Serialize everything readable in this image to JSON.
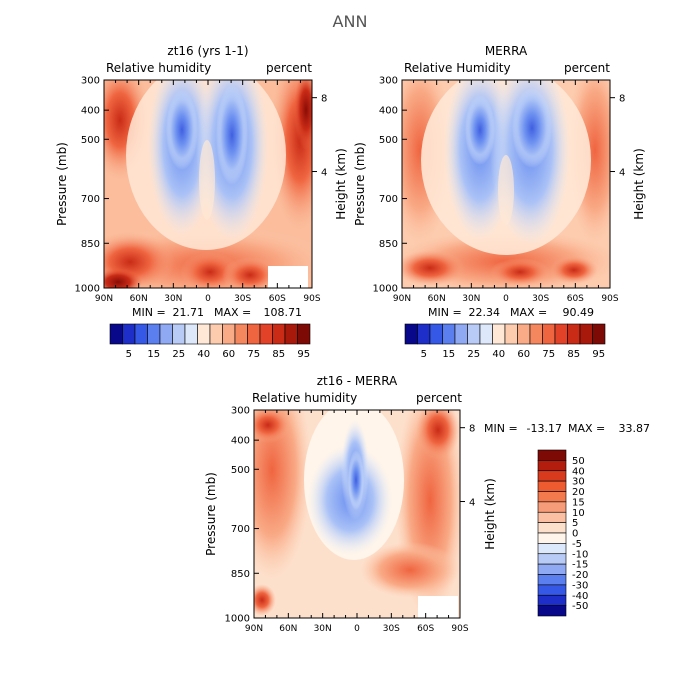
{
  "figure": {
    "title": "ANN"
  },
  "colors": {
    "axis": "#000000",
    "blank_region": "#ffffff"
  },
  "chart_data": [
    {
      "type": "heatmap",
      "id": "model",
      "title": "zt16 (yrs 1-1)",
      "left_label": "Relative humidity",
      "right_label": "percent",
      "xlabel": "",
      "ylabel": "Pressure (mb)",
      "ylabel_right": "Height (km)",
      "x_ticks": [
        "90N",
        "60N",
        "30N",
        "0",
        "30S",
        "60S",
        "90S"
      ],
      "y_ticks": [
        "300",
        "400",
        "500",
        "700",
        "850",
        "1000"
      ],
      "height_ticks": [
        "8",
        "4"
      ],
      "ylim": [
        1000,
        300
      ],
      "stats": {
        "min_label": "MIN =",
        "min": "21.71",
        "max_label": "MAX =",
        "max": "108.71"
      },
      "colorbar": {
        "orientation": "horizontal",
        "labels": [
          "5",
          "15",
          "25",
          "40",
          "60",
          "75",
          "85",
          "95"
        ],
        "colors": [
          "#08088a",
          "#1e2ec8",
          "#3558e6",
          "#5b7fee",
          "#8fa9f3",
          "#b8cbf7",
          "#dde8fb",
          "#ffe8d6",
          "#fdccaf",
          "#f9aa86",
          "#f5875f",
          "#ef6540",
          "#e24328",
          "#c92b16",
          "#a8180b",
          "#7e0a05"
        ]
      },
      "bottom_right_blank_region": true
    },
    {
      "type": "heatmap",
      "id": "merra",
      "title": "MERRA",
      "left_label": "Relative Humidity",
      "right_label": "percent",
      "xlabel": "",
      "ylabel": "Pressure (mb)",
      "ylabel_right": "Height (km)",
      "x_ticks": [
        "90N",
        "60N",
        "30N",
        "0",
        "30S",
        "60S",
        "90S"
      ],
      "y_ticks": [
        "300",
        "400",
        "500",
        "700",
        "850",
        "1000"
      ],
      "height_ticks": [
        "8",
        "4"
      ],
      "ylim": [
        1000,
        300
      ],
      "stats": {
        "min_label": "MIN =",
        "min": "22.34",
        "max_label": "MAX =",
        "max": "90.49"
      },
      "colorbar": {
        "orientation": "horizontal",
        "labels": [
          "5",
          "15",
          "25",
          "40",
          "60",
          "75",
          "85",
          "95"
        ],
        "colors": [
          "#08088a",
          "#1e2ec8",
          "#3558e6",
          "#5b7fee",
          "#8fa9f3",
          "#b8cbf7",
          "#dde8fb",
          "#ffe8d6",
          "#fdccaf",
          "#f9aa86",
          "#f5875f",
          "#ef6540",
          "#e24328",
          "#c92b16",
          "#a8180b",
          "#7e0a05"
        ]
      },
      "bottom_right_blank_region": false
    },
    {
      "type": "heatmap",
      "id": "diff",
      "title": "zt16 - MERRA",
      "left_label": "Relative humidity",
      "right_label": "percent",
      "xlabel": "",
      "ylabel": "Pressure (mb)",
      "ylabel_right": "Height (km)",
      "x_ticks": [
        "90N",
        "60N",
        "30N",
        "0",
        "30S",
        "60S",
        "90S"
      ],
      "y_ticks": [
        "300",
        "400",
        "500",
        "700",
        "850",
        "1000"
      ],
      "height_ticks": [
        "8",
        "4"
      ],
      "ylim": [
        1000,
        300
      ],
      "stats": {
        "min_label": "MIN =",
        "min": "-13.17",
        "max_label": "MAX =",
        "max": "33.87"
      },
      "colorbar": {
        "orientation": "vertical",
        "labels": [
          "50",
          "40",
          "30",
          "20",
          "15",
          "10",
          "5",
          "0",
          "-5",
          "-10",
          "-15",
          "-20",
          "-30",
          "-40",
          "-50"
        ],
        "colors": [
          "#7e0a05",
          "#b31d0d",
          "#d83a1d",
          "#ee5b31",
          "#f27a4d",
          "#f79c78",
          "#fbc0a4",
          "#fde0cc",
          "#fff5ea",
          "#dce8fb",
          "#b8cbf7",
          "#8fa9f3",
          "#5b7fee",
          "#3558e6",
          "#1e2ec8",
          "#08088a"
        ]
      },
      "bottom_right_blank_region": true
    }
  ]
}
